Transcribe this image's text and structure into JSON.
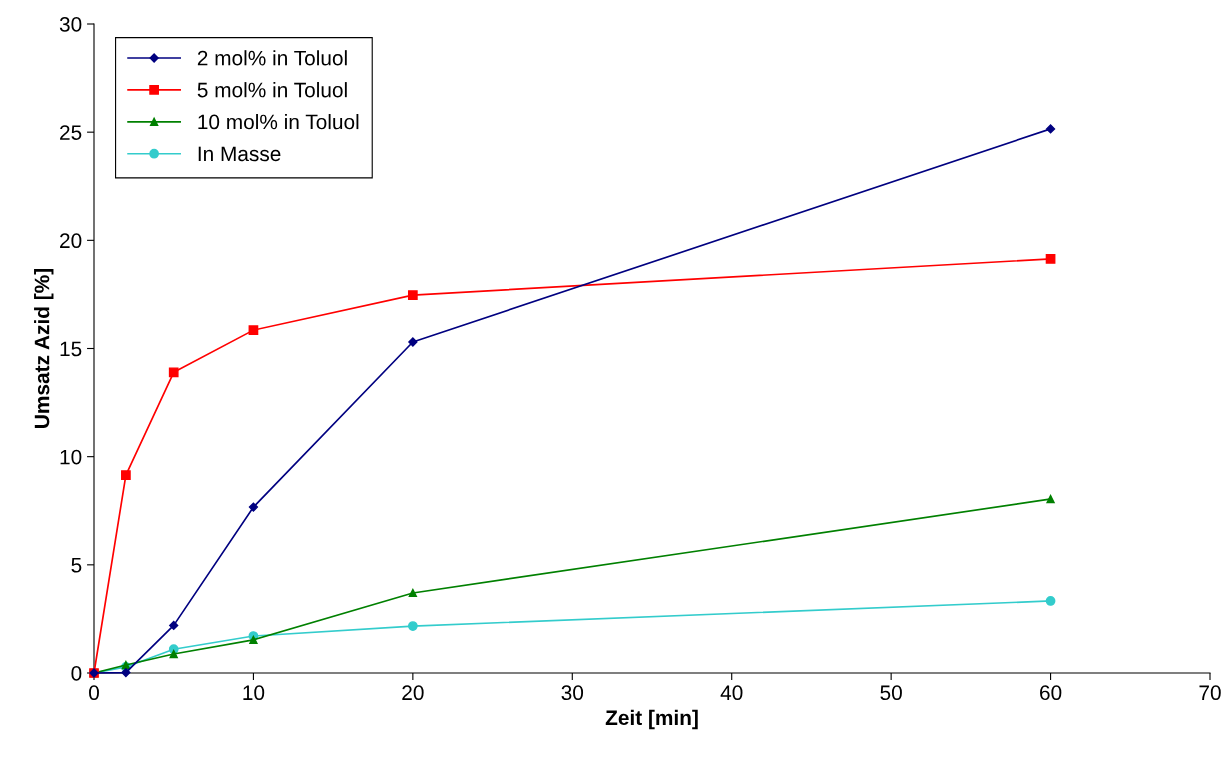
{
  "chart_data": {
    "type": "line",
    "xlabel": "Zeit [min]",
    "ylabel": "Umsatz Azid [%]",
    "xlim": [
      0,
      70
    ],
    "xticks": [
      0,
      10,
      20,
      30,
      40,
      50,
      60,
      70
    ],
    "ylim": [
      0,
      30
    ],
    "yticks": [
      0,
      5,
      10,
      15,
      20,
      25,
      30
    ],
    "grid": false,
    "legend": "top left",
    "x": [
      0,
      2,
      5,
      10,
      20,
      60
    ],
    "series": [
      {
        "name": "2 mol% in Toluol",
        "color": "#000080",
        "marker": "diamond",
        "values": [
          0,
          0.02,
          2.2,
          7.67,
          15.3,
          25.15
        ]
      },
      {
        "name": "5 mol% in Toluol",
        "color": "#ff0000",
        "marker": "square",
        "values": [
          0,
          9.15,
          13.9,
          15.85,
          17.47,
          19.14
        ]
      },
      {
        "name": "10 mol% in Toluol",
        "color": "#008000",
        "marker": "triangle",
        "values": [
          0,
          0.37,
          0.88,
          1.53,
          3.7,
          8.04
        ]
      },
      {
        "name": "In Masse",
        "color": "#33cccc",
        "marker": "circle",
        "values": [
          0,
          0.28,
          1.1,
          1.71,
          2.17,
          3.33
        ]
      }
    ]
  }
}
